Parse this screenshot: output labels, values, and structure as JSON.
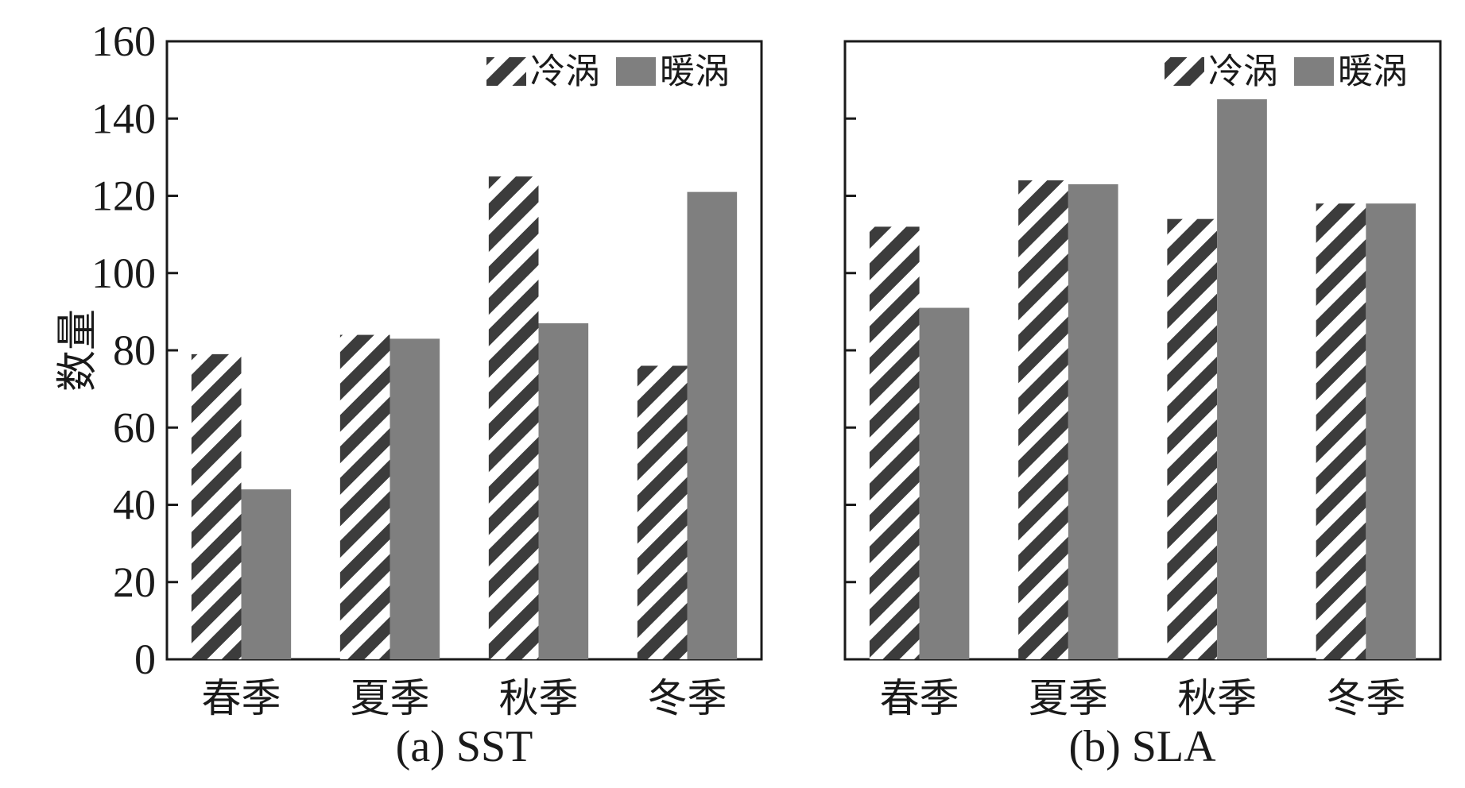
{
  "colors": {
    "axis": "#1a1a1a",
    "cold_stripe_dark": "#3c3c3c",
    "cold_stripe_light": "#ffffff",
    "warm_fill": "#7f7f7f"
  },
  "chart_data": [
    {
      "type": "bar",
      "caption": "(a) SST",
      "ylabel": "数量",
      "ylim": [
        0,
        160
      ],
      "yticks": [
        0,
        20,
        40,
        60,
        80,
        100,
        120,
        140,
        160
      ],
      "show_ytick_labels": true,
      "categories": [
        "春季",
        "夏季",
        "秋季",
        "冬季"
      ],
      "series": [
        {
          "name": "冷涡",
          "pattern": "diagonal-stripes",
          "values": [
            79,
            84,
            125,
            76
          ]
        },
        {
          "name": "暖涡",
          "pattern": "solid-gray",
          "values": [
            44,
            83,
            87,
            121
          ]
        }
      ],
      "legend": "top-right",
      "grid": false
    },
    {
      "type": "bar",
      "caption": "(b) SLA",
      "ylabel": "",
      "ylim": [
        0,
        160
      ],
      "yticks": [
        0,
        20,
        40,
        60,
        80,
        100,
        120,
        140,
        160
      ],
      "show_ytick_labels": false,
      "categories": [
        "春季",
        "夏季",
        "秋季",
        "冬季"
      ],
      "series": [
        {
          "name": "冷涡",
          "pattern": "diagonal-stripes",
          "values": [
            112,
            124,
            114,
            118
          ]
        },
        {
          "name": "暖涡",
          "pattern": "solid-gray",
          "values": [
            91,
            123,
            145,
            118
          ]
        }
      ],
      "legend": "top-right",
      "grid": false
    }
  ]
}
